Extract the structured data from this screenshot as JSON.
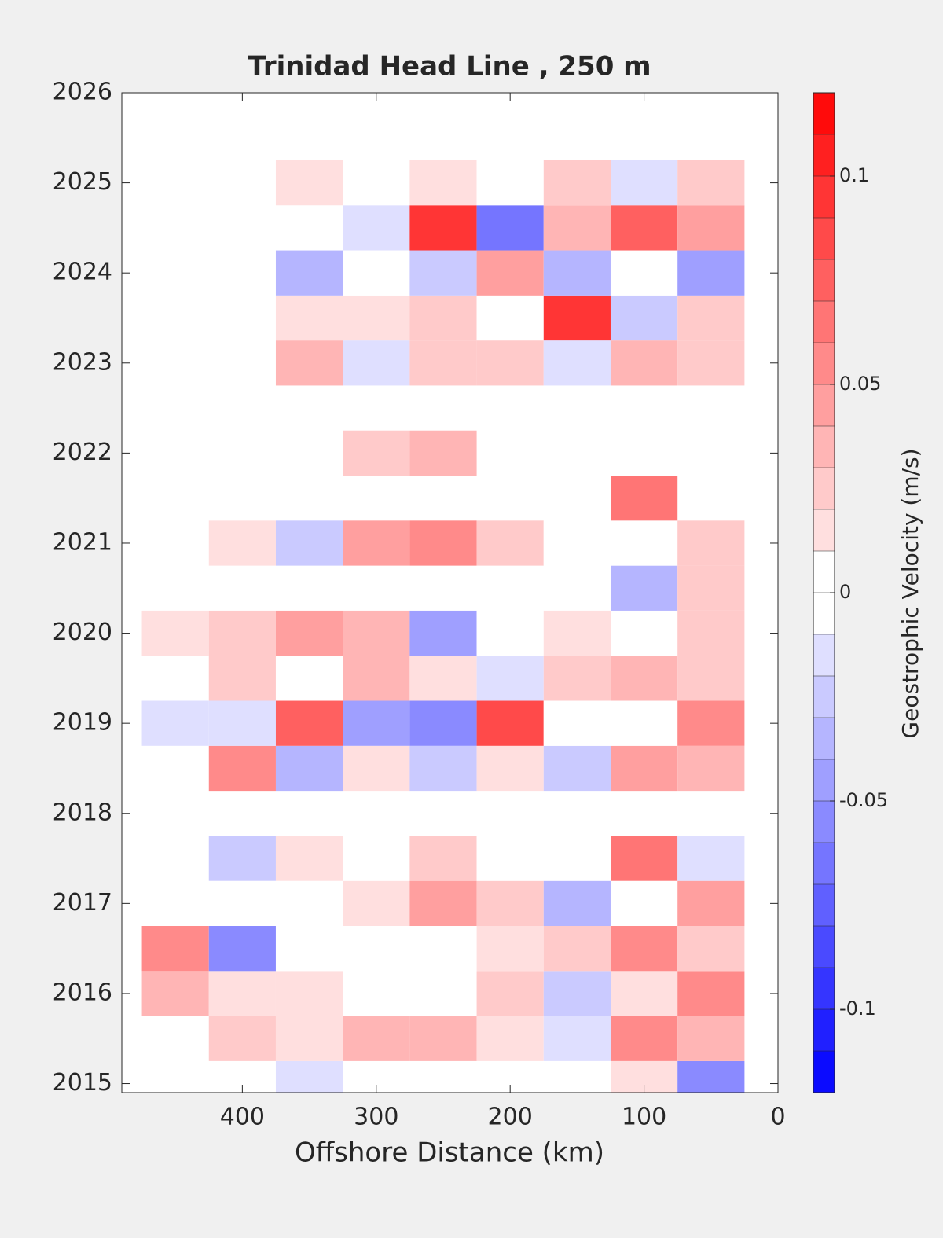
{
  "chart_data": {
    "type": "contour",
    "title": "Trinidad Head Line , 250 m",
    "x_label": "Offshore Distance (km)",
    "colorbar_label": "Geostrophic Velocity (m/s)",
    "x": [
      450,
      400,
      350,
      300,
      250,
      200,
      150,
      100,
      50
    ],
    "y": [
      2015.0,
      2015.5,
      2016.0,
      2016.5,
      2017.0,
      2017.5,
      2018.0,
      2018.5,
      2019.0,
      2019.5,
      2020.0,
      2020.5,
      2021.0,
      2021.5,
      2022.0,
      2022.5,
      2023.0,
      2023.5,
      2024.0,
      2024.5,
      2025.0
    ],
    "z": [
      [
        0,
        0,
        -0.02,
        0,
        0,
        0,
        0,
        0.01,
        -0.06
      ],
      [
        0,
        0.02,
        0.01,
        0.03,
        0.03,
        0.01,
        -0.02,
        0.05,
        0.03
      ],
      [
        0.03,
        0.01,
        0.01,
        0,
        -0.01,
        0.02,
        -0.03,
        0.01,
        0.05
      ],
      [
        0.05,
        -0.06,
        0,
        -0.01,
        0,
        0.01,
        0.02,
        0.05,
        0.02
      ],
      [
        0,
        0,
        0,
        0.01,
        0.04,
        0.02,
        -0.04,
        0,
        0.04
      ],
      [
        0,
        -0.03,
        0.01,
        -0.01,
        0.02,
        0,
        -0.01,
        0.06,
        -0.02
      ],
      [
        null,
        null,
        null,
        null,
        null,
        null,
        null,
        null,
        null
      ],
      [
        0,
        0.05,
        -0.04,
        0.01,
        -0.03,
        0.01,
        -0.03,
        0.04,
        0.03
      ],
      [
        -0.02,
        -0.02,
        0.07,
        -0.05,
        -0.06,
        0.08,
        -0.01,
        -0.01,
        0.05
      ],
      [
        0,
        0.02,
        -0.01,
        0.03,
        0.01,
        -0.02,
        0.02,
        0.03,
        0.02
      ],
      [
        0.01,
        0.02,
        0.04,
        0.03,
        -0.05,
        0,
        0.01,
        -0.01,
        0.02
      ],
      [
        null,
        null,
        null,
        null,
        null,
        null,
        null,
        -0.04,
        0.02
      ],
      [
        null,
        0.01,
        -0.03,
        0.04,
        0.05,
        0.02,
        0,
        0,
        0.02
      ],
      [
        null,
        null,
        null,
        null,
        null,
        null,
        null,
        0.06,
        null
      ],
      [
        null,
        null,
        0,
        0.02,
        0.03,
        null,
        null,
        null,
        null
      ],
      [
        null,
        null,
        null,
        null,
        null,
        null,
        null,
        null,
        null
      ],
      [
        null,
        0,
        0.03,
        -0.02,
        0.02,
        0.02,
        -0.02,
        0.03,
        0.02
      ],
      [
        null,
        null,
        0.01,
        0.01,
        0.02,
        -0.01,
        0.09,
        -0.03,
        0.02
      ],
      [
        null,
        null,
        -0.04,
        0,
        -0.03,
        0.04,
        -0.04,
        0,
        -0.05
      ],
      [
        null,
        null,
        0,
        -0.02,
        0.09,
        -0.07,
        0.03,
        0.07,
        0.04
      ],
      [
        null,
        null,
        0.01,
        -0.01,
        0.01,
        0,
        0.02,
        -0.02,
        0.02
      ]
    ],
    "xlim": [
      490,
      0
    ],
    "xticks": [
      400,
      300,
      200,
      100,
      0
    ],
    "ylim": [
      2014.9,
      2026
    ],
    "yticks": [
      2015,
      2016,
      2017,
      2018,
      2019,
      2020,
      2021,
      2022,
      2023,
      2024,
      2025,
      2026
    ],
    "clim": [
      -0.12,
      0.12
    ],
    "cticks": [
      -0.1,
      -0.05,
      0,
      0.05,
      0.1
    ],
    "colormap": [
      "#0000ff",
      "#ffffff",
      "#ff0000"
    ]
  }
}
